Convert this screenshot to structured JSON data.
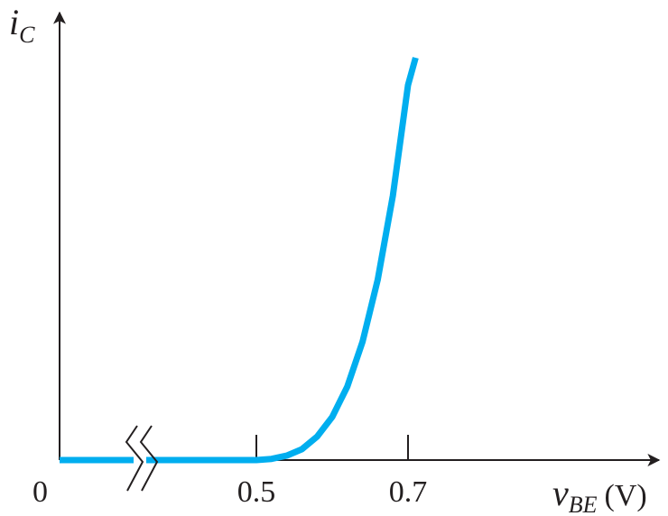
{
  "chart_data": {
    "type": "line",
    "title": "",
    "ylabel": {
      "symbol": "i",
      "subscript": "C"
    },
    "xlabel": {
      "symbol": "v",
      "subscript": "BE",
      "unit": "(V)"
    },
    "origin_label": "0",
    "x_ticks": [
      {
        "value": 0.5,
        "label": "0.5"
      },
      {
        "value": 0.7,
        "label": "0.7"
      }
    ],
    "axis_break": {
      "between": [
        0,
        0.5
      ]
    },
    "series": [
      {
        "color": "#00aeef",
        "x": [
          0.0,
          0.5,
          0.52,
          0.54,
          0.56,
          0.58,
          0.6,
          0.62,
          0.64,
          0.66,
          0.68,
          0.7,
          0.71
        ],
        "y": [
          0.0,
          0.0,
          0.003,
          0.011,
          0.027,
          0.058,
          0.107,
          0.183,
          0.294,
          0.448,
          0.657,
          0.932,
          1.0
        ]
      }
    ],
    "grid": false,
    "legend": "none",
    "colors": {
      "curve": "#00aeef",
      "axes": "#231f20"
    }
  }
}
